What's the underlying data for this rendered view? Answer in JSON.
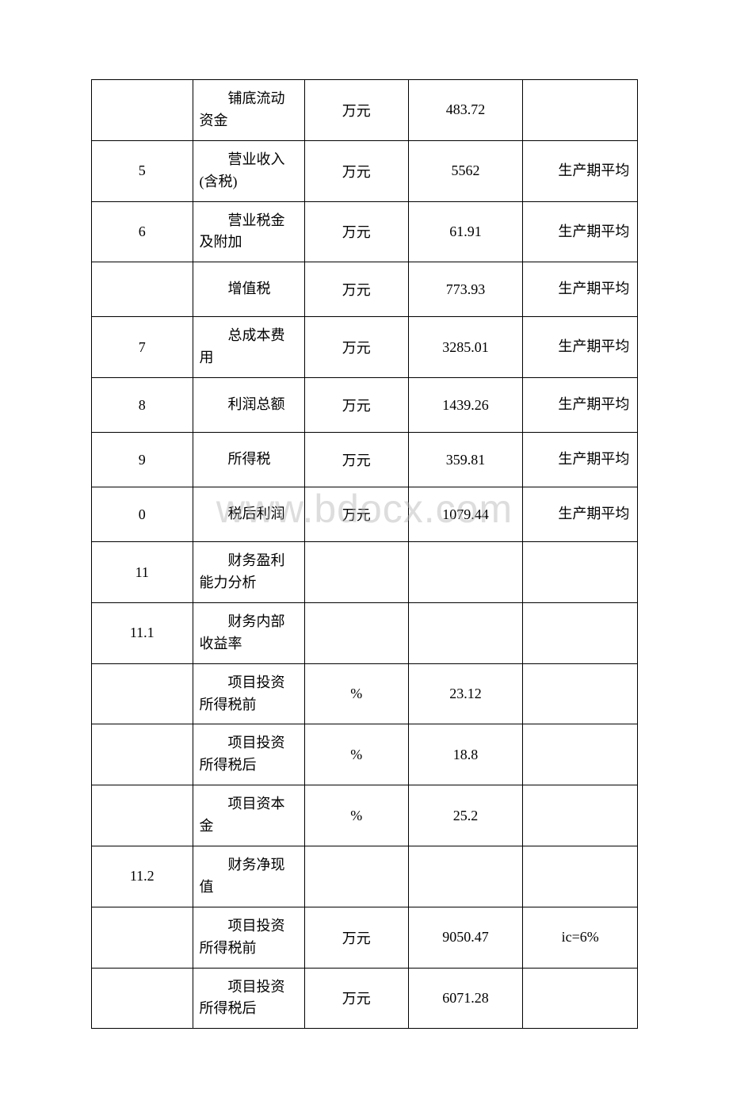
{
  "watermark": "www.bdocx.com",
  "rows": [
    {
      "c1": "",
      "c2": "铺底流动资金",
      "c3": "万元",
      "c4": "483.72",
      "c5": ""
    },
    {
      "c1": "5",
      "c2": "营业收入(含税)",
      "c3": "万元",
      "c4": "5562",
      "c5": "生产期平均"
    },
    {
      "c1": "6",
      "c2": "营业税金及附加",
      "c3": "万元",
      "c4": "61.91",
      "c5": "生产期平均"
    },
    {
      "c1": "",
      "c2": "增值税",
      "c3": "万元",
      "c4": "773.93",
      "c5": "生产期平均"
    },
    {
      "c1": "7",
      "c2": "总成本费用",
      "c3": "万元",
      "c4": "3285.01",
      "c5": "生产期平均"
    },
    {
      "c1": "8",
      "c2": "利润总额",
      "c3": "万元",
      "c4": "1439.26",
      "c5": "生产期平均"
    },
    {
      "c1": "9",
      "c2": "所得税",
      "c3": "万元",
      "c4": "359.81",
      "c5": "生产期平均"
    },
    {
      "c1": "0",
      "c2": "税后利润",
      "c3": "万元",
      "c4": "1079.44",
      "c5": "生产期平均"
    },
    {
      "c1": "11",
      "c2": "财务盈利能力分析",
      "c3": "",
      "c4": "",
      "c5": ""
    },
    {
      "c1": "11.1",
      "c2": "财务内部收益率",
      "c3": "",
      "c4": "",
      "c5": ""
    },
    {
      "c1": "",
      "c2": "项目投资所得税前",
      "c3": "%",
      "c4": "23.12",
      "c5": ""
    },
    {
      "c1": "",
      "c2": "项目投资所得税后",
      "c3": "%",
      "c4": "18.8",
      "c5": ""
    },
    {
      "c1": "",
      "c2": "项目资本金",
      "c3": "%",
      "c4": "25.2",
      "c5": ""
    },
    {
      "c1": "11.2",
      "c2": "财务净现值",
      "c3": "",
      "c4": "",
      "c5": ""
    },
    {
      "c1": "",
      "c2": "项目投资所得税前",
      "c3": "万元",
      "c4": "9050.47",
      "c5": "ic=6%"
    },
    {
      "c1": "",
      "c2": "项目投资所得税后",
      "c3": "万元",
      "c4": "6071.28",
      "c5": ""
    }
  ],
  "style": {
    "font_size_pt": 14,
    "text_color": "#000000",
    "border_color": "#000000",
    "background_color": "#ffffff",
    "watermark_color": "rgba(180,180,180,0.45)"
  }
}
